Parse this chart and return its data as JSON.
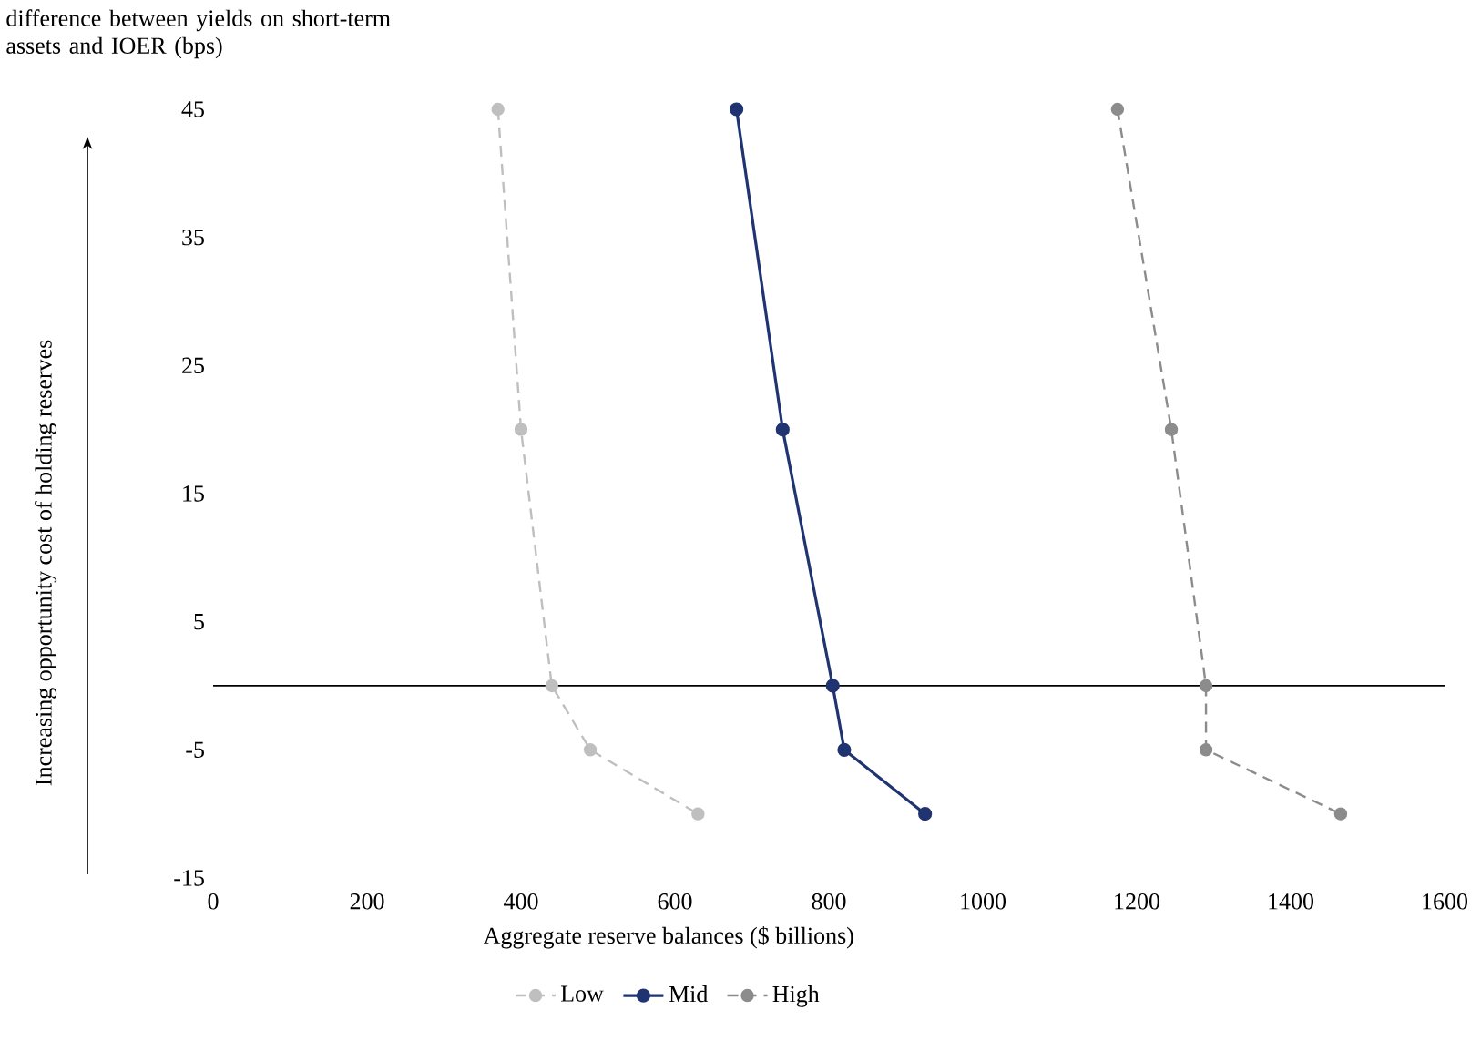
{
  "chart_data": {
    "type": "line",
    "title": "difference between yields on short-term assets and IOER (bps)",
    "ylabel": "Increasing opportunity cost of holding reserves",
    "xlabel": "Aggregate reserve balances ($ billions)",
    "xlim": [
      0,
      1600
    ],
    "xticks": [
      0,
      200,
      400,
      600,
      800,
      1000,
      1200,
      1400,
      1600
    ],
    "ylim": [
      -15,
      45
    ],
    "yticks": [
      -15,
      -5,
      5,
      15,
      25,
      35,
      45
    ],
    "marker": "circle",
    "legend": "bottom",
    "ref_lines": [
      {
        "axis": "y",
        "value": 0,
        "color": "#000000"
      }
    ],
    "series": [
      {
        "name": "Low",
        "color": "#bfbfbf",
        "line_style": "dashed",
        "x": [
          370,
          400,
          440,
          490,
          630
        ],
        "values": [
          45,
          20,
          0,
          -5,
          -10
        ]
      },
      {
        "name": "Mid",
        "color": "#1f3470",
        "line_style": "solid",
        "x": [
          680,
          740,
          805,
          820,
          925
        ],
        "values": [
          45,
          20,
          0,
          -5,
          -10
        ]
      },
      {
        "name": "High",
        "color": "#8c8c8c",
        "line_style": "dashed",
        "x": [
          1175,
          1245,
          1290,
          1290,
          1465
        ],
        "values": [
          45,
          20,
          0,
          -5,
          -10
        ]
      }
    ]
  }
}
